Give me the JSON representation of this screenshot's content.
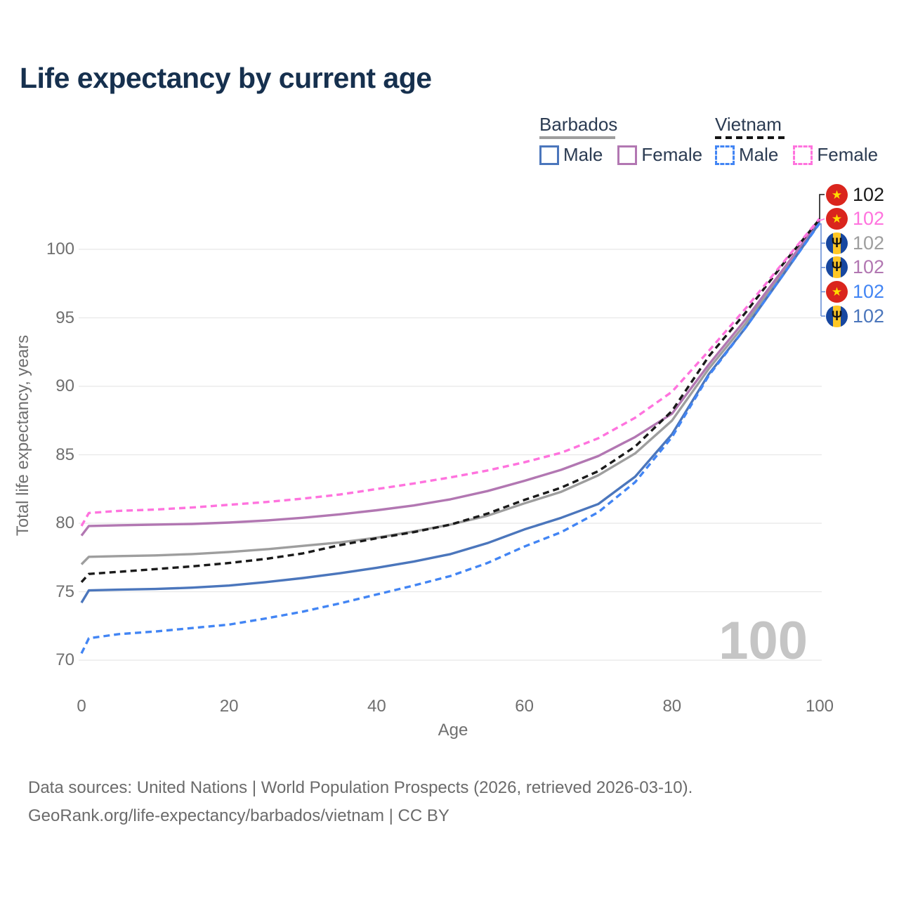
{
  "title": "Life expectancy by current age",
  "watermark": "100",
  "legend": {
    "groups": [
      {
        "label": "Barbados",
        "line_style": "solid",
        "underline_color": "#9e9e9e",
        "items": [
          {
            "label": "Male",
            "color": "#4b76bc"
          },
          {
            "label": "Female",
            "color": "#b277b2"
          }
        ]
      },
      {
        "label": "Vietnam",
        "line_style": "dashed",
        "underline_color": "#141414",
        "items": [
          {
            "label": "Male",
            "color": "#4285f4"
          },
          {
            "label": "Female",
            "color": "#ff73de"
          }
        ]
      }
    ]
  },
  "y_axis": {
    "title": "Total life expectancy, years",
    "ticks": [
      70,
      75,
      80,
      85,
      90,
      95,
      100
    ]
  },
  "x_axis": {
    "title": "Age",
    "ticks": [
      0,
      20,
      40,
      60,
      80,
      100
    ]
  },
  "end_labels": [
    {
      "flag": "vn",
      "flag_glyph": "★",
      "value": "102",
      "color": "#1a1a1a",
      "series": "Vietnam"
    },
    {
      "flag": "vn",
      "flag_glyph": "★",
      "value": "102",
      "color": "#ff73de",
      "series": "Vietnam Female"
    },
    {
      "flag": "bb",
      "flag_glyph": "Ψ",
      "value": "102",
      "color": "#9e9e9e",
      "series": "Barbados"
    },
    {
      "flag": "bb",
      "flag_glyph": "Ψ",
      "value": "102",
      "color": "#b277b2",
      "series": "Barbados Female"
    },
    {
      "flag": "vn",
      "flag_glyph": "★",
      "value": "102",
      "color": "#4285f4",
      "series": "Vietnam Male"
    },
    {
      "flag": "bb",
      "flag_glyph": "Ψ",
      "value": "102",
      "color": "#4b76bc",
      "series": "Barbados Male"
    }
  ],
  "footer": {
    "line1": "Data sources: United Nations | World Population Prospects (2026, retrieved 2026-03-10).",
    "line2": "GeoRank.org/life-expectancy/barbados/vietnam | CC BY"
  },
  "chart_data": {
    "type": "line",
    "title": "Life expectancy by current age",
    "xlabel": "Age",
    "ylabel": "Total life expectancy, years",
    "xlim": [
      0,
      100
    ],
    "ylim": [
      70,
      102.5
    ],
    "grid": "horizontal",
    "legend_position": "top-right",
    "x": [
      0,
      1,
      5,
      10,
      15,
      20,
      25,
      30,
      35,
      40,
      45,
      50,
      55,
      60,
      65,
      70,
      75,
      80,
      85,
      90,
      95,
      100
    ],
    "series": [
      {
        "name": "Barbados",
        "country": "Barbados",
        "sex": "all",
        "color": "#9e9e9e",
        "dash": "solid",
        "values": [
          77.0,
          77.55,
          77.6,
          77.65,
          77.75,
          77.9,
          78.1,
          78.35,
          78.6,
          78.95,
          79.4,
          79.9,
          80.55,
          81.45,
          82.3,
          83.5,
          85.1,
          87.5,
          91.3,
          94.6,
          98.3,
          102.05
        ]
      },
      {
        "name": "Barbados Female",
        "country": "Barbados",
        "sex": "female",
        "color": "#b277b2",
        "dash": "solid",
        "values": [
          79.1,
          79.8,
          79.85,
          79.9,
          79.95,
          80.05,
          80.2,
          80.4,
          80.65,
          80.95,
          81.3,
          81.75,
          82.35,
          83.1,
          83.9,
          84.9,
          86.3,
          88.0,
          91.6,
          94.9,
          98.5,
          102.1
        ]
      },
      {
        "name": "Barbados Male",
        "country": "Barbados",
        "sex": "male",
        "color": "#4b76bc",
        "dash": "solid",
        "values": [
          74.2,
          75.1,
          75.15,
          75.2,
          75.3,
          75.45,
          75.7,
          76.0,
          76.35,
          76.75,
          77.2,
          77.75,
          78.55,
          79.55,
          80.4,
          81.4,
          83.4,
          86.5,
          90.9,
          94.3,
          98.1,
          101.95
        ]
      },
      {
        "name": "Vietnam",
        "country": "Vietnam",
        "sex": "all",
        "color": "#1a1a1a",
        "dash": "dashed",
        "values": [
          75.7,
          76.3,
          76.45,
          76.65,
          76.85,
          77.1,
          77.4,
          77.8,
          78.4,
          78.9,
          79.35,
          79.9,
          80.7,
          81.7,
          82.6,
          83.8,
          85.6,
          88.2,
          92.2,
          95.4,
          98.9,
          102.2
        ]
      },
      {
        "name": "Vietnam Female",
        "country": "Vietnam",
        "sex": "female",
        "color": "#ff73de",
        "dash": "dashed",
        "values": [
          79.8,
          80.75,
          80.9,
          81.0,
          81.15,
          81.35,
          81.55,
          81.8,
          82.1,
          82.5,
          82.9,
          83.35,
          83.85,
          84.45,
          85.15,
          86.2,
          87.7,
          89.6,
          92.6,
          95.7,
          99.0,
          102.25
        ]
      },
      {
        "name": "Vietnam Male",
        "country": "Vietnam",
        "sex": "male",
        "color": "#4285f4",
        "dash": "dashed",
        "values": [
          70.5,
          71.6,
          71.9,
          72.1,
          72.35,
          72.6,
          73.05,
          73.55,
          74.15,
          74.8,
          75.45,
          76.15,
          77.1,
          78.3,
          79.35,
          80.8,
          83.0,
          86.3,
          90.8,
          94.3,
          98.1,
          101.9
        ]
      }
    ]
  }
}
